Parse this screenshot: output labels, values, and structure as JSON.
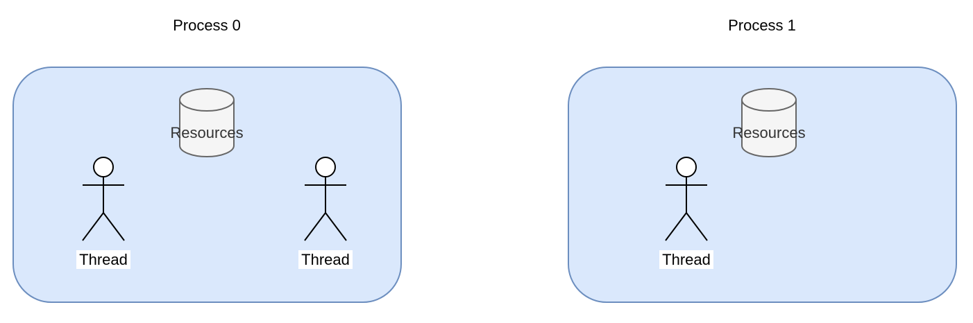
{
  "colors": {
    "process_fill": "#dae8fc",
    "process_stroke": "#6c8ebf",
    "resource_fill": "#f5f5f5",
    "resource_stroke": "#666666",
    "actor_stroke": "#000000"
  },
  "processes": [
    {
      "title": "Process 0",
      "resource": {
        "label": "Resources",
        "icon": "database-cylinder-icon"
      },
      "threads": [
        {
          "label": "Thread",
          "icon": "stick-figure-icon"
        },
        {
          "label": "Thread",
          "icon": "stick-figure-icon"
        }
      ]
    },
    {
      "title": "Process 1",
      "resource": {
        "label": "Resources",
        "icon": "database-cylinder-icon"
      },
      "threads": [
        {
          "label": "Thread",
          "icon": "stick-figure-icon"
        }
      ]
    }
  ]
}
